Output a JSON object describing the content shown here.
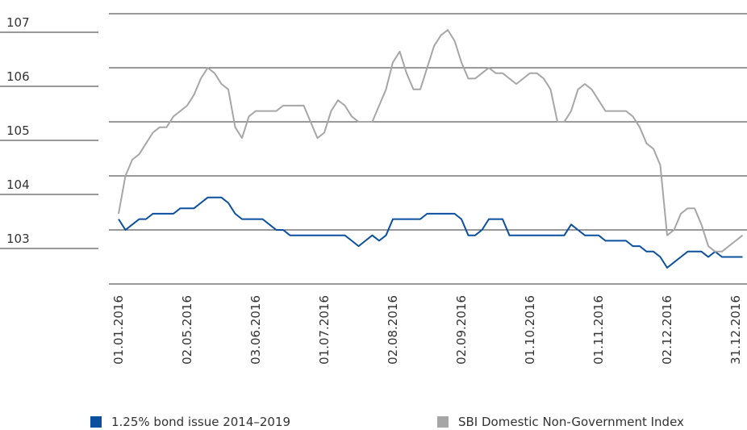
{
  "chart_data": {
    "type": "line",
    "categories": [
      "01.01.2016",
      null,
      null,
      null,
      null,
      null,
      null,
      null,
      null,
      null,
      "02.05.2016",
      null,
      null,
      null,
      null,
      null,
      null,
      null,
      null,
      null,
      "03.06.2016",
      null,
      null,
      null,
      null,
      null,
      null,
      null,
      null,
      null,
      "01.07.2016",
      null,
      null,
      null,
      null,
      null,
      null,
      null,
      null,
      null,
      "02.08.2016",
      null,
      null,
      null,
      null,
      null,
      null,
      null,
      null,
      null,
      "02.09.2016",
      null,
      null,
      null,
      null,
      null,
      null,
      null,
      null,
      null,
      "01.10.2016",
      null,
      null,
      null,
      null,
      null,
      null,
      null,
      null,
      null,
      "01.11.2016",
      null,
      null,
      null,
      null,
      null,
      null,
      null,
      null,
      null,
      "02.12.2016",
      null,
      null,
      null,
      null,
      null,
      null,
      null,
      null,
      null,
      "31.12.2016",
      null
    ],
    "series": [
      {
        "name": "1.25% bond issue 2014–2019",
        "color": "#0b4f9f",
        "values": [
          103.2,
          103.0,
          103.1,
          103.2,
          103.2,
          103.3,
          103.3,
          103.3,
          103.3,
          103.4,
          103.4,
          103.4,
          103.5,
          103.6,
          103.6,
          103.6,
          103.5,
          103.3,
          103.2,
          103.2,
          103.2,
          103.2,
          103.1,
          103.0,
          103.0,
          102.9,
          102.9,
          102.9,
          102.9,
          102.9,
          102.9,
          102.9,
          102.9,
          102.9,
          102.8,
          102.7,
          102.8,
          102.9,
          102.8,
          102.9,
          103.2,
          103.2,
          103.2,
          103.2,
          103.2,
          103.3,
          103.3,
          103.3,
          103.3,
          103.3,
          103.2,
          102.9,
          102.9,
          103.0,
          103.2,
          103.2,
          103.2,
          102.9,
          102.9,
          102.9,
          102.9,
          102.9,
          102.9,
          102.9,
          102.9,
          102.9,
          103.1,
          103.0,
          102.9,
          102.9,
          102.9,
          102.8,
          102.8,
          102.8,
          102.8,
          102.7,
          102.7,
          102.6,
          102.6,
          102.5,
          102.3,
          102.4,
          102.5,
          102.6,
          102.6,
          102.6,
          102.5,
          102.6,
          102.5,
          102.5,
          102.5,
          102.5
        ]
      },
      {
        "name": "SBI Domestic Non-Government Index",
        "color": "#a6a6a6",
        "values": [
          103.3,
          104.0,
          104.3,
          104.4,
          104.6,
          104.8,
          104.9,
          104.9,
          105.1,
          105.2,
          105.3,
          105.5,
          105.8,
          106.0,
          105.9,
          105.7,
          105.6,
          104.9,
          104.7,
          105.1,
          105.2,
          105.2,
          105.2,
          105.2,
          105.3,
          105.3,
          105.3,
          105.3,
          105.0,
          104.7,
          104.8,
          105.2,
          105.4,
          105.3,
          105.1,
          105.0,
          105.0,
          105.0,
          105.3,
          105.6,
          106.1,
          106.3,
          105.9,
          105.6,
          105.6,
          106.0,
          106.4,
          106.6,
          106.7,
          106.5,
          106.1,
          105.8,
          105.8,
          105.9,
          106.0,
          105.9,
          105.9,
          105.8,
          105.7,
          105.8,
          105.9,
          105.9,
          105.8,
          105.6,
          105.0,
          105.0,
          105.2,
          105.6,
          105.7,
          105.6,
          105.4,
          105.2,
          105.2,
          105.2,
          105.2,
          105.1,
          104.9,
          104.6,
          104.5,
          104.2,
          102.9,
          103.0,
          103.3,
          103.4,
          103.4,
          103.1,
          102.7,
          102.6,
          102.6,
          102.7,
          102.8,
          102.9
        ]
      }
    ],
    "ylim": [
      102,
      107
    ],
    "yticks": [
      103,
      104,
      105,
      106,
      107
    ],
    "grid": true
  }
}
